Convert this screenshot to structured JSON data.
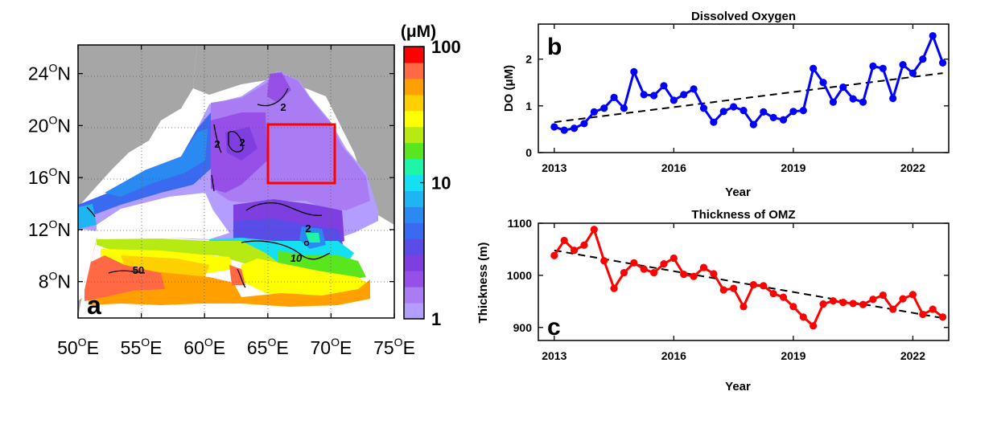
{
  "colors": {
    "land": "#a6a6a6",
    "frame": "#000000",
    "do_series": "#0000ff",
    "thickness_series": "#ff0000",
    "box": "#ff0000",
    "trend": "#000000"
  },
  "chart_data": [
    {
      "type": "heatmap",
      "panel_label": "a",
      "x_ticks": [
        "50",
        "55",
        "60",
        "65",
        "70",
        "75"
      ],
      "x_suffix": "E",
      "y_ticks": [
        "8",
        "12",
        "16",
        "20",
        "24"
      ],
      "y_suffix": "N",
      "degree": "O",
      "xlim": [
        50,
        75
      ],
      "ylim": [
        5.2,
        26.2
      ],
      "colorbar": {
        "unit_label": "(μM)",
        "ticks": [
          "1",
          "10",
          "100"
        ],
        "scale": "log",
        "range": [
          1,
          100
        ],
        "colors": [
          "#b39dff",
          "#a97cf3",
          "#9650e8",
          "#7f3fe0",
          "#5a4ce6",
          "#3a6af0",
          "#2a8af2",
          "#1fb5f2",
          "#14e0f2",
          "#1ef5a6",
          "#5ae61e",
          "#b7ea12",
          "#ffff00",
          "#ffd000",
          "#ffa000",
          "#ff6a45",
          "#ff0000"
        ]
      },
      "contour_labels": [
        "2",
        "2",
        "2",
        "2",
        "10",
        "50"
      ],
      "red_box": {
        "lon": [
          65,
          70
        ],
        "lat": [
          15.5,
          20
        ]
      }
    },
    {
      "type": "line",
      "panel_label": "b",
      "title": "Dissolved Oxygen",
      "xlabel": "Year",
      "ylabel": "DO (μM)",
      "x_ticks": [
        "2013",
        "2016",
        "2019",
        "2022"
      ],
      "y_ticks": [
        "0",
        "1",
        "2"
      ],
      "xlim": [
        2012.6,
        2022.9
      ],
      "ylim": [
        0,
        2.75
      ],
      "x": [
        2013.0,
        2013.25,
        2013.5,
        2013.75,
        2014.0,
        2014.25,
        2014.5,
        2014.75,
        2015.0,
        2015.25,
        2015.5,
        2015.75,
        2016.0,
        2016.25,
        2016.5,
        2016.75,
        2017.0,
        2017.25,
        2017.5,
        2017.75,
        2018.0,
        2018.25,
        2018.5,
        2018.75,
        2019.0,
        2019.25,
        2019.5,
        2019.75,
        2020.0,
        2020.25,
        2020.5,
        2020.75,
        2021.0,
        2021.25,
        2021.5,
        2021.75,
        2022.0,
        2022.25,
        2022.5,
        2022.75
      ],
      "values": [
        0.55,
        0.48,
        0.52,
        0.62,
        0.87,
        0.95,
        1.18,
        0.95,
        1.73,
        1.24,
        1.22,
        1.43,
        1.12,
        1.24,
        1.36,
        0.95,
        0.65,
        0.88,
        0.98,
        0.9,
        0.6,
        0.87,
        0.75,
        0.7,
        0.88,
        0.9,
        1.8,
        1.5,
        1.08,
        1.4,
        1.15,
        1.08,
        1.85,
        1.8,
        1.16,
        1.88,
        1.7,
        2.0,
        2.5,
        1.92
      ],
      "trend": {
        "x": [
          2013.0,
          2022.75
        ],
        "values": [
          0.65,
          1.7
        ]
      }
    },
    {
      "type": "line",
      "panel_label": "c",
      "title": "Thickness of OMZ",
      "xlabel": "Year",
      "ylabel": "Thickness (m)",
      "x_ticks": [
        "2013",
        "2016",
        "2019",
        "2022"
      ],
      "y_ticks": [
        "900",
        "1000",
        "1100"
      ],
      "xlim": [
        2012.6,
        2022.9
      ],
      "ylim": [
        875,
        1100
      ],
      "x": [
        2013.0,
        2013.25,
        2013.5,
        2013.75,
        2014.0,
        2014.25,
        2014.5,
        2014.75,
        2015.0,
        2015.25,
        2015.5,
        2015.75,
        2016.0,
        2016.25,
        2016.5,
        2016.75,
        2017.0,
        2017.25,
        2017.5,
        2017.75,
        2018.0,
        2018.25,
        2018.5,
        2018.75,
        2019.0,
        2019.25,
        2019.5,
        2019.75,
        2020.0,
        2020.25,
        2020.5,
        2020.75,
        2021.0,
        2021.25,
        2021.5,
        2021.75,
        2022.0,
        2022.25,
        2022.5,
        2022.75
      ],
      "values": [
        1038,
        1067,
        1048,
        1058,
        1088,
        1028,
        975,
        1005,
        1024,
        1012,
        1005,
        1022,
        1033,
        1002,
        998,
        1015,
        1003,
        972,
        975,
        940,
        982,
        980,
        965,
        958,
        940,
        920,
        903,
        945,
        951,
        948,
        946,
        944,
        954,
        962,
        935,
        955,
        963,
        925,
        935,
        920
      ],
      "trend": {
        "x": [
          2013.0,
          2022.75
        ],
        "values": [
          1048,
          918
        ]
      }
    }
  ]
}
